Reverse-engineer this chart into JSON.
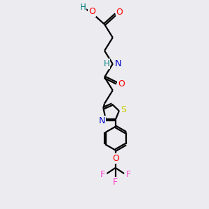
{
  "background_color": "#ebebf0",
  "bond_color": "#000000",
  "atom_colors": {
    "O": "#ff0000",
    "N": "#0000cc",
    "S": "#cccc00",
    "F": "#ff44cc",
    "H": "#008080",
    "C": "#000000"
  },
  "figsize": [
    3.0,
    3.0
  ],
  "dpi": 100
}
